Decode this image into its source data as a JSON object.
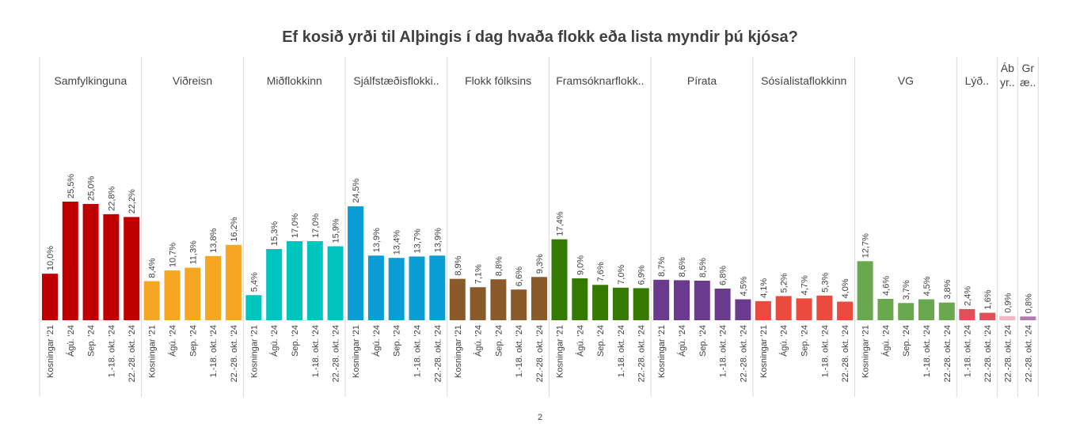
{
  "page_number": "2",
  "chart_data": {
    "type": "bar",
    "title": "Ef kosið yrði til Alþingis í dag hvaða flokk eða lista myndir þú kjósa?",
    "xlabel": "",
    "ylabel": "",
    "ylim": [
      0,
      30
    ],
    "grid": false,
    "value_suffix": "%",
    "groups": [
      {
        "name": "Samfylkinguna",
        "color": "#C00000",
        "categories": [
          "Kosningar '21",
          "Ágú. '24",
          "Sep. '24",
          "1.-18. okt. '24",
          "22.-28. okt. '24"
        ],
        "values": [
          10.0,
          25.5,
          25.0,
          22.8,
          22.2
        ],
        "labels": [
          "10,0%",
          "25,5%",
          "25,0%",
          "22,8%",
          "22,2%"
        ]
      },
      {
        "name": "Viðreisn",
        "color": "#F5A623",
        "categories": [
          "Kosningar '21",
          "Ágú. '24",
          "Sep. '24",
          "1.-18. okt. '24",
          "22.-28. okt. '24"
        ],
        "values": [
          8.4,
          10.7,
          11.3,
          13.8,
          16.2
        ],
        "labels": [
          "8,4%",
          "10,7%",
          "11,3%",
          "13,8%",
          "16,2%"
        ]
      },
      {
        "name": "Miðflokkinn",
        "color": "#00C4BE",
        "categories": [
          "Kosningar '21",
          "Ágú. '24",
          "Sep. '24",
          "1.-18. okt. '24",
          "22.-28. okt. '24"
        ],
        "values": [
          5.4,
          15.3,
          17.0,
          17.0,
          15.9
        ],
        "labels": [
          "5,4%",
          "15,3%",
          "17,0%",
          "17,0%",
          "15,9%"
        ]
      },
      {
        "name": "Sjálfstæðisflokki..",
        "color": "#0B9ED4",
        "categories": [
          "Kosningar '21",
          "Ágú. '24",
          "Sep. '24",
          "1.-18. okt. '24",
          "22.-28. okt. '24"
        ],
        "values": [
          24.5,
          13.9,
          13.4,
          13.7,
          13.9
        ],
        "labels": [
          "24,5%",
          "13,9%",
          "13,4%",
          "13,7%",
          "13,9%"
        ]
      },
      {
        "name": "Flokk fólksins",
        "color": "#8B5A2B",
        "categories": [
          "Kosningar '21",
          "Ágú. '24",
          "Sep. '24",
          "1.-18. okt. '24",
          "22.-28. okt. '24"
        ],
        "values": [
          8.9,
          7.1,
          8.8,
          6.6,
          9.3
        ],
        "labels": [
          "8,9%",
          "7,1%",
          "8,8%",
          "6,6%",
          "9,3%"
        ]
      },
      {
        "name": "Framsóknarflokk..",
        "color": "#357A00",
        "categories": [
          "Kosningar '21",
          "Ágú. '24",
          "Sep. '24",
          "1.-18. okt. '24",
          "22.-28. okt. '24"
        ],
        "values": [
          17.4,
          9.0,
          7.6,
          7.0,
          6.9
        ],
        "labels": [
          "17,4%",
          "9,0%",
          "7,6%",
          "7,0%",
          "6,9%"
        ]
      },
      {
        "name": "Pírata",
        "color": "#6A3A8F",
        "categories": [
          "Kosningar '21",
          "Ágú. '24",
          "Sep. '24",
          "1.-18. okt. '24",
          "22.-28. okt. '24"
        ],
        "values": [
          8.7,
          8.6,
          8.5,
          6.8,
          4.5
        ],
        "labels": [
          "8,7%",
          "8,6%",
          "8,5%",
          "6,8%",
          "4,5%"
        ]
      },
      {
        "name": "Sósíalistaflokkinn",
        "color": "#EB4A3F",
        "categories": [
          "Kosningar '21",
          "Ágú. '24",
          "Sep. '24",
          "1.-18. okt. '24",
          "22.-28. okt. '24"
        ],
        "values": [
          4.1,
          5.2,
          4.7,
          5.3,
          4.0
        ],
        "labels": [
          "4,1%",
          "5,2%",
          "4,7%",
          "5,3%",
          "4,0%"
        ]
      },
      {
        "name": "VG",
        "color": "#6AA84F",
        "categories": [
          "Kosningar '21",
          "Ágú. '24",
          "Sep. '24",
          "1.-18. okt. '24",
          "22.-28. okt. '24"
        ],
        "values": [
          12.7,
          4.6,
          3.7,
          4.5,
          3.8
        ],
        "labels": [
          "12,7%",
          "4,6%",
          "3,7%",
          "4,5%",
          "3,8%"
        ]
      },
      {
        "name": "Lýð..",
        "color": "#E0505A",
        "categories": [
          "1.-18. okt. '24",
          "22.-28. okt. '24"
        ],
        "values": [
          2.4,
          1.6
        ],
        "labels": [
          "2,4%",
          "1,6%"
        ]
      },
      {
        "name": "Áb yr..",
        "name_lines": [
          "Áb",
          "yr.."
        ],
        "color": "#F2B6C6",
        "categories": [
          "22.-28. okt. '24"
        ],
        "values": [
          0.9
        ],
        "labels": [
          "0,9%"
        ]
      },
      {
        "name": "Gr æ..",
        "name_lines": [
          "Gr",
          "æ.."
        ],
        "color": "#B57BB0",
        "categories": [
          "22.-28. okt. '24"
        ],
        "values": [
          0.8
        ],
        "labels": [
          "0,8%"
        ]
      }
    ]
  }
}
